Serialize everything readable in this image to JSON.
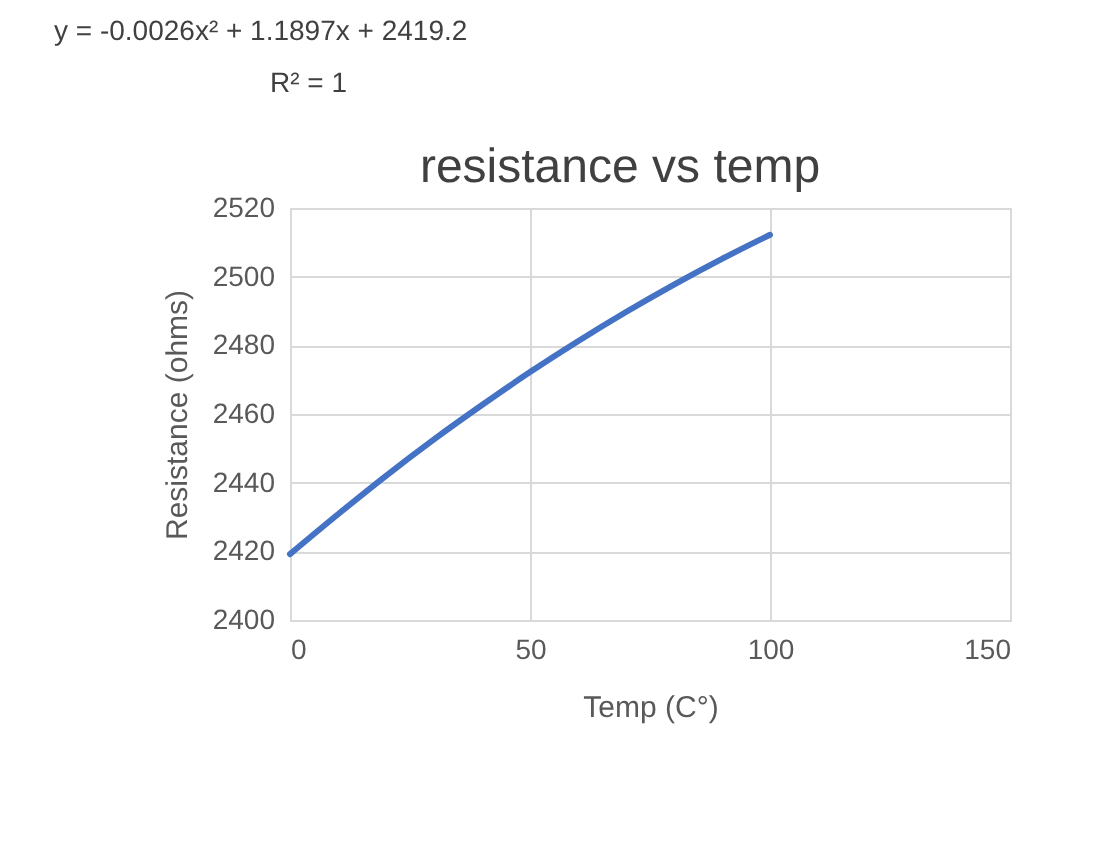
{
  "chart_data": {
    "type": "line",
    "title": "resistance vs temp",
    "xlabel": "Temp  (C°)",
    "ylabel": "Resistance (ohms)",
    "annotations": [
      "y = -0.0026x² + 1.1897x + 2419.2",
      "R² = 1"
    ],
    "x": [
      0,
      10,
      20,
      30,
      40,
      50,
      60,
      70,
      80,
      90,
      100
    ],
    "series": [
      {
        "color": "#4472c4",
        "values": [
          2419.2,
          2430.8,
          2442.0,
          2452.6,
          2462.6,
          2472.2,
          2481.2,
          2489.7,
          2497.7,
          2505.2,
          2512.2
        ]
      }
    ],
    "xlim": [
      0,
      150
    ],
    "xticks": [
      0,
      50,
      100,
      150
    ],
    "ylim": [
      2400,
      2520
    ],
    "yticks": [
      2400,
      2420,
      2440,
      2460,
      2480,
      2500,
      2520
    ],
    "grid": true,
    "marker": "none",
    "line_style": "solid"
  }
}
